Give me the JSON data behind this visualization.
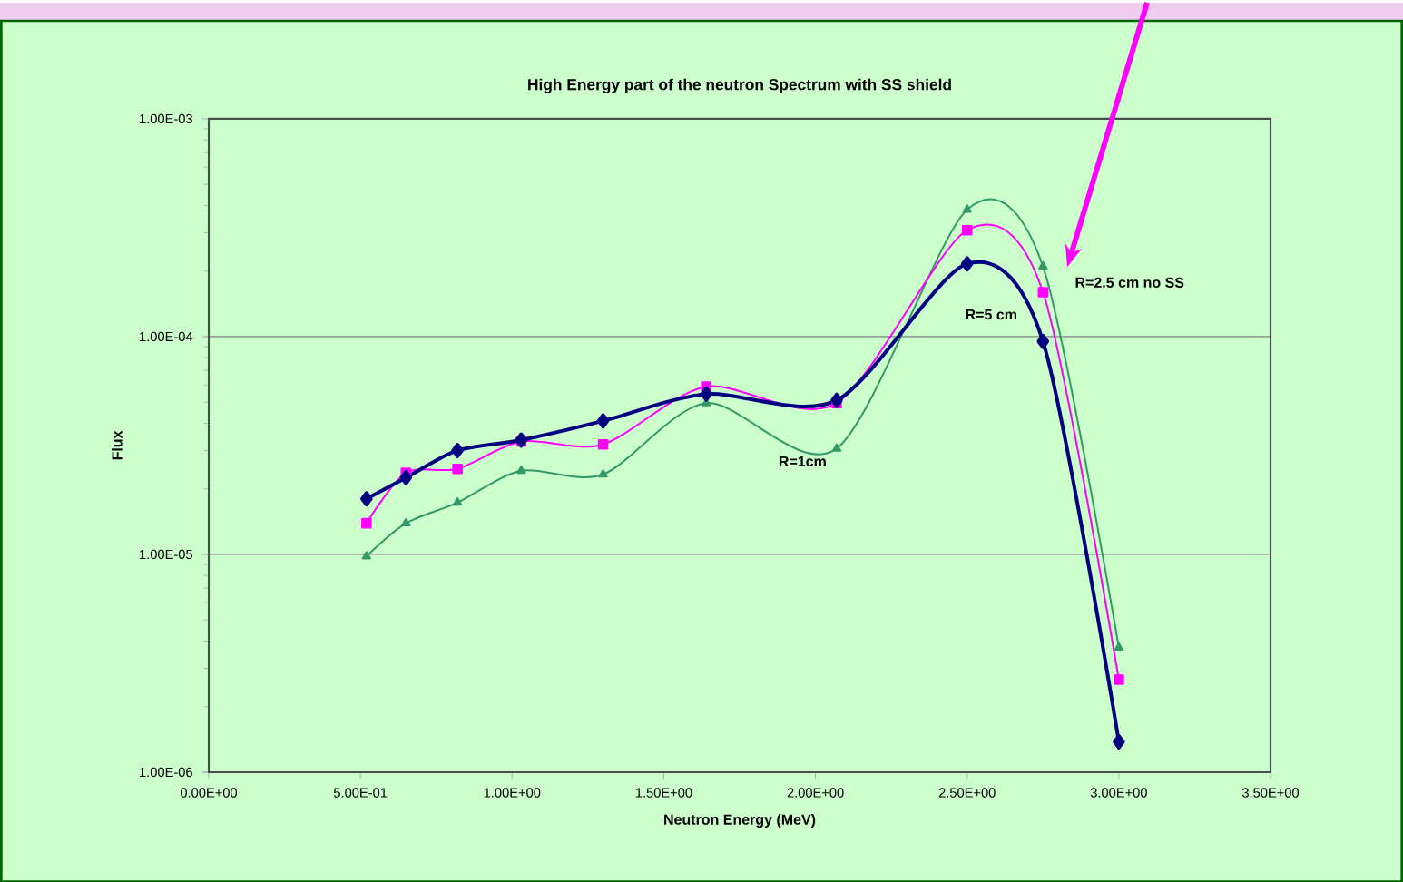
{
  "chart_data": {
    "type": "line",
    "title": "High Energy part of the neutron Spectrum with SS shield",
    "xlabel": "Neutron Energy (MeV)",
    "ylabel": "Flux",
    "x": [
      0.52,
      0.65,
      0.82,
      1.03,
      1.3,
      1.64,
      2.07,
      2.5,
      2.75,
      3.0
    ],
    "series": [
      {
        "name": "R=5 cm",
        "color": "#000080",
        "marker": "diamond",
        "values": [
          1.8e-05,
          2.25e-05,
          3e-05,
          3.35e-05,
          4.1e-05,
          5.45e-05,
          5.1e-05,
          0.000216,
          9.5e-05,
          1.38e-06
        ]
      },
      {
        "name": "R=2.5 cm no SS",
        "color": "#ff00ff",
        "marker": "square",
        "values": [
          1.39e-05,
          2.37e-05,
          2.47e-05,
          3.3e-05,
          3.2e-05,
          5.9e-05,
          4.95e-05,
          0.000308,
          0.00016,
          2.66e-06
        ]
      },
      {
        "name": "R=1cm",
        "color": "#339966",
        "marker": "triangle",
        "values": [
          9.8e-06,
          1.39e-05,
          1.73e-05,
          2.42e-05,
          2.33e-05,
          4.95e-05,
          3.06e-05,
          0.000383,
          0.00021,
          3.74e-06
        ]
      }
    ],
    "log": "y",
    "grid": "y",
    "xlim": [
      0,
      3.5
    ],
    "ylim": [
      1e-06,
      0.001
    ],
    "xticks": [
      {
        "value": 0,
        "label": "0.00E+00"
      },
      {
        "value": 0.5,
        "label": "5.00E-01"
      },
      {
        "value": 1,
        "label": "1.00E+00"
      },
      {
        "value": 1.5,
        "label": "1.50E+00"
      },
      {
        "value": 2,
        "label": "2.00E+00"
      },
      {
        "value": 2.5,
        "label": "2.50E+00"
      },
      {
        "value": 3,
        "label": "3.00E+00"
      },
      {
        "value": 3.5,
        "label": "3.50E+00"
      }
    ],
    "yticks": [
      {
        "value": 1e-06,
        "label": "1.00E-06"
      },
      {
        "value": 1e-05,
        "label": "1.00E-05"
      },
      {
        "value": 0.0001,
        "label": "1.00E-04"
      },
      {
        "value": 0.001,
        "label": "1.00E-03"
      }
    ]
  }
}
